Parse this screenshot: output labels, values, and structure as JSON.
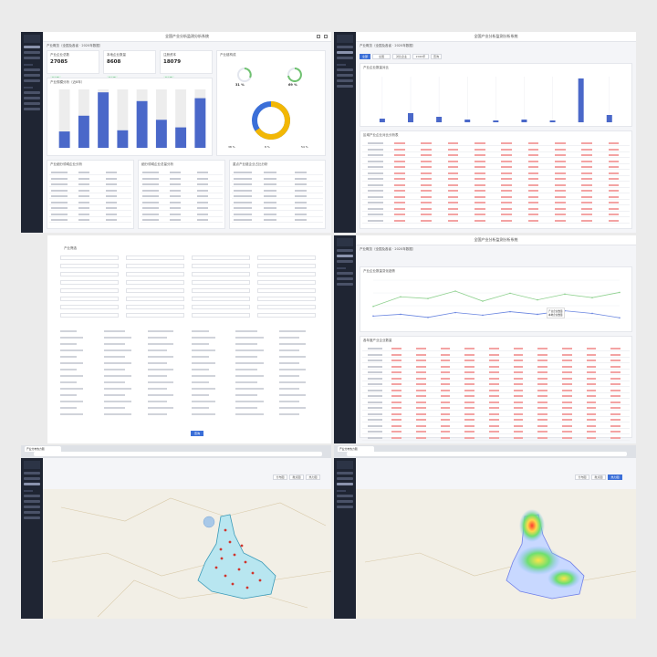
{
  "app_title": "全国产业分析监测分析系统",
  "breadcrumb": "产业概览（全国及各省 · 2020年数据）",
  "panels": {
    "overview": {
      "cards": [
        {
          "label": "产业企业总数",
          "value": "27085",
          "tag": "较上期"
        },
        {
          "label": "本地企业数量",
          "value": "8608",
          "tag": "较上期"
        },
        {
          "label": "注册资本",
          "value": "18079",
          "tag": "较上期"
        }
      ],
      "gauge_title": "产业链构成",
      "gauge_values": [
        "31 %",
        "69 %"
      ],
      "donut_title": "企业类型分布",
      "donut_values": [
        "38 %",
        "8 %",
        "54 %"
      ],
      "bar_title": "产业规模分析（近8年）",
      "tables": [
        {
          "title": "产业细分领域企业分析",
          "headers": [
            "名称",
            "数量",
            "占比"
          ]
        },
        {
          "title": "细分领域企业总量分析",
          "headers": [
            "名称",
            "数量",
            "占比"
          ]
        },
        {
          "title": "重点产业链企业占比分析",
          "headers": [
            "名称",
            "占比",
            "数量"
          ]
        }
      ]
    },
    "compare": {
      "filters": [
        "全部",
        "全国",
        "对比企业",
        "2020年",
        "查询"
      ],
      "bar_title": "产业企业数量对比",
      "table_title": "区域产业企业对比分析表"
    },
    "form": {
      "title": "产业筛选",
      "submit": "查询"
    },
    "trend": {
      "chart_title": "产业企业数量变化趋势",
      "legend": [
        "产业企业数量",
        "本地企业数量"
      ],
      "table_title": "各年度产业企业数量"
    },
    "map_a": {
      "tab_title": "产业分布热力图",
      "url": "localhost:8080/#/industry/map",
      "view_buttons": [
        "分布图",
        "散点图",
        "热力图"
      ]
    },
    "map_b": {
      "tab_title": "产业分布热力图",
      "url": "localhost:8080/#/industry/heat",
      "view_buttons": [
        "分布图",
        "散点图",
        "热力图"
      ]
    }
  },
  "chart_data": [
    {
      "type": "bar",
      "title": "产业规模分析（近8年）",
      "categories": [
        "1",
        "2",
        "3",
        "4",
        "5",
        "6",
        "7",
        "8"
      ],
      "values": [
        28,
        55,
        95,
        30,
        80,
        48,
        35,
        85
      ],
      "ylim": [
        0,
        100
      ]
    },
    {
      "type": "line",
      "title": "产业企业数量变化趋势",
      "x": [
        "1",
        "2",
        "3",
        "4",
        "5",
        "6",
        "7",
        "8",
        "9",
        "10"
      ],
      "series": [
        {
          "name": "产业企业数量",
          "values": [
            40,
            62,
            58,
            75,
            52,
            70,
            55,
            68,
            60,
            72
          ]
        },
        {
          "name": "本地企业数量",
          "values": [
            18,
            22,
            15,
            26,
            20,
            28,
            22,
            30,
            24,
            14
          ]
        }
      ]
    }
  ],
  "colors": {
    "accent": "#4a68c9",
    "sidebar": "#1f2533",
    "donut_a": "#f2b705",
    "donut_b": "#3b6fd8",
    "green": "#6fc26f"
  }
}
